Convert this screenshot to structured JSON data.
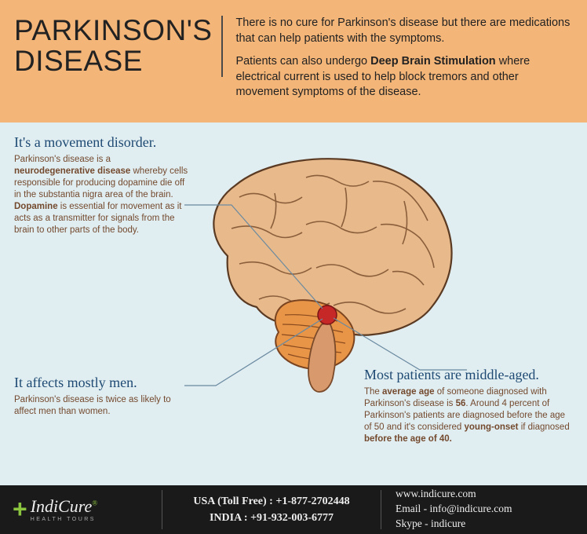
{
  "header": {
    "title": "PARKINSON'S DISEASE",
    "para1": "There is no cure for Parkinson's disease but there are medications that can help patients with the symptoms.",
    "para2_a": "Patients can also undergo ",
    "para2_bold": "Deep Brain Stimulation",
    "para2_b": " where electrical current is used to help block tremors and other movement symptoms of the disease."
  },
  "callouts": {
    "c1": {
      "heading": "It's a movement disorder.",
      "body_html": "Parkinson's disease is a <strong>neurodegenerative disease</strong> whereby cells responsible for producing dopamine die off in the substantia nigra area of the brain. <strong>Dopamine</strong> is essential for movement as it acts as a transmitter for signals from the brain to other parts of the body."
    },
    "c2": {
      "heading": "It affects mostly men.",
      "body_html": "Parkinson's disease is twice as likely to affect men than women."
    },
    "c3": {
      "heading": "Most patients are middle-aged.",
      "body_html": "The <strong>average age</strong> of someone diagnosed with Parkinson's disease is <strong>56</strong>. Around 4 percent of Parkinson's patients are diagnosed before the age of 50 and it's considered <strong>young-onset</strong> if diagnosed <strong>before the age of 40.</strong>"
    }
  },
  "brain_colors": {
    "cerebrum_fill": "#e8b98a",
    "cerebrum_stroke": "#5a3a22",
    "cerebellum_fill": "#e89548",
    "cerebellum_stroke": "#7a4420",
    "brainstem": "#d89a6c",
    "dot": "#c62828",
    "leader": "#6a8aa0"
  },
  "footer": {
    "logo_name": "IndiCure",
    "logo_tag": "HEALTH TOURS",
    "usa_label": "USA (Toll Free) : ",
    "usa_phone": "+1-877-2702448",
    "india_label": "INDIA : ",
    "india_phone": "+91-932-003-6777",
    "web": "www.indicure.com",
    "email_label": "Email - ",
    "email": "info@indicure.com",
    "skype_label": "Skype - ",
    "skype": "indicure"
  },
  "styling": {
    "header_bg": "#f4b578",
    "main_bg": "#e0edf1",
    "footer_bg": "#1a1a1a",
    "title_color": "#222",
    "callout_heading_color": "#1e4a73",
    "callout_body_color": "#744a2e",
    "logo_accent": "#8bc53f",
    "title_fontsize": 37,
    "callout_heading_fontsize": 18,
    "callout_body_fontsize": 11.5
  }
}
